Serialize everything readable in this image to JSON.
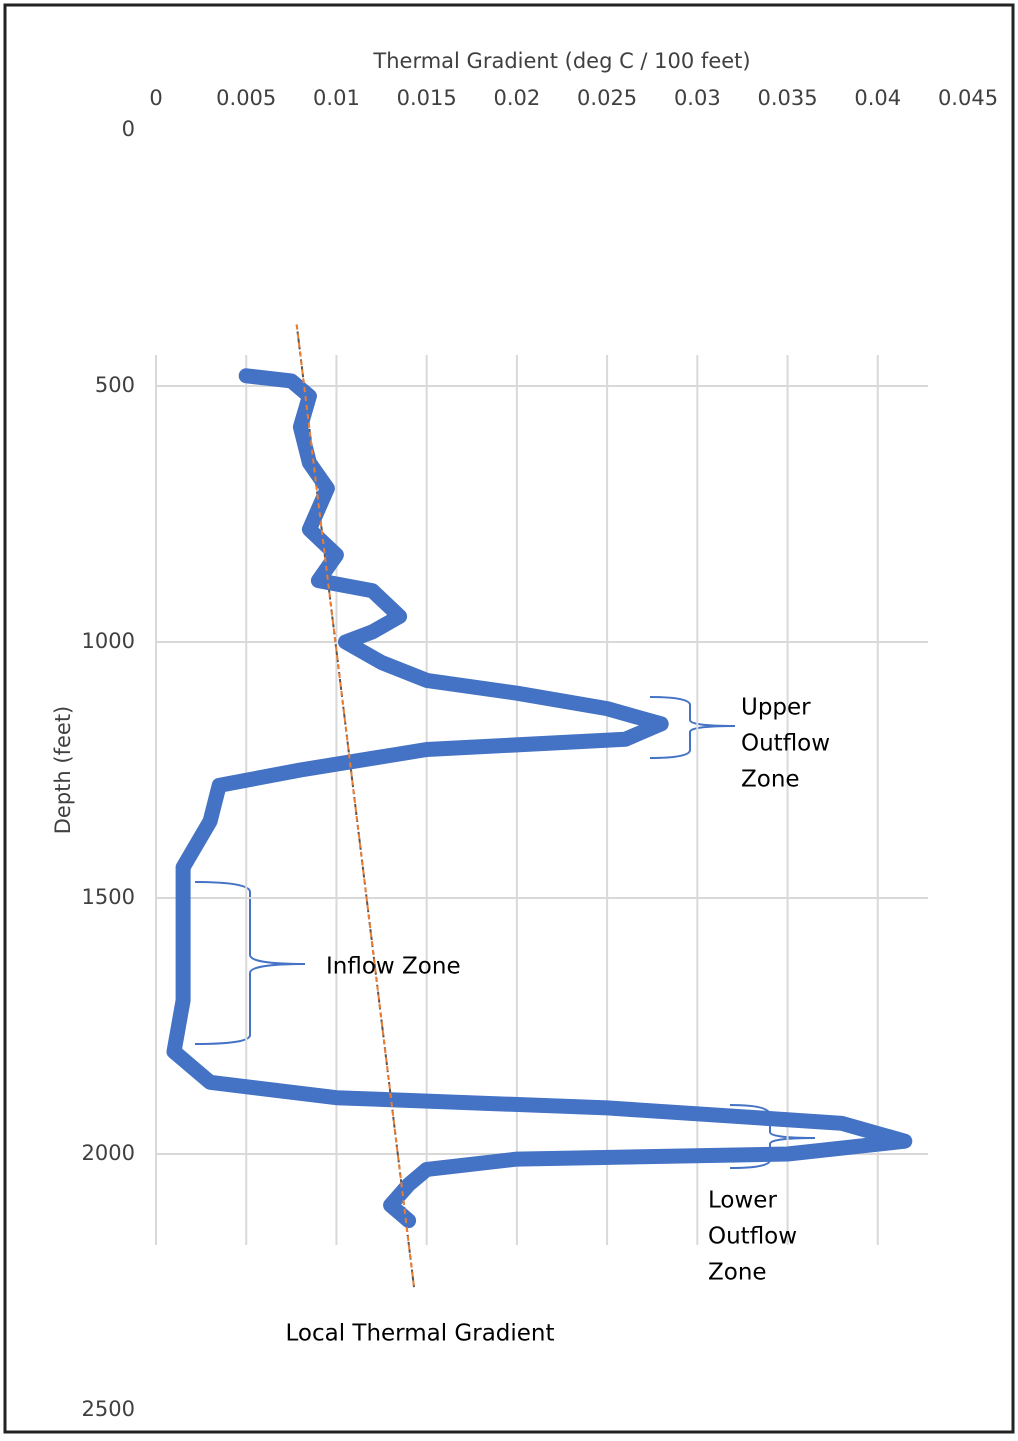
{
  "chart_data": {
    "type": "line",
    "x_label": "Thermal Gradient (deg C / 100 feet)",
    "y_label": "Depth (feet)",
    "xlim": [
      0,
      0.045
    ],
    "xticks": [
      0,
      0.005,
      0.01,
      0.015,
      0.02,
      0.025,
      0.03,
      0.035,
      0.04,
      0.045
    ],
    "ylim": [
      0,
      2500
    ],
    "yticks": [
      0,
      500,
      1000,
      1500,
      2000,
      2500
    ],
    "y_inverted": true,
    "grid": true,
    "series": [
      {
        "color": "#4472c4",
        "x": [
          0.005,
          0.0075,
          0.0085,
          0.008,
          0.0085,
          0.0095,
          0.0085,
          0.01,
          0.009,
          0.012,
          0.0135,
          0.012,
          0.0105,
          0.0125,
          0.015,
          0.02,
          0.025,
          0.028,
          0.026,
          0.015,
          0.008,
          0.0035,
          0.003,
          0.0015,
          0.0015,
          0.0015,
          0.001,
          0.003,
          0.01,
          0.025,
          0.038,
          0.0415,
          0.035,
          0.02,
          0.015,
          0.014,
          0.013,
          0.014
        ],
        "y": [
          480,
          490,
          520,
          580,
          650,
          700,
          780,
          830,
          880,
          900,
          950,
          980,
          1000,
          1040,
          1075,
          1100,
          1130,
          1160,
          1190,
          1210,
          1250,
          1280,
          1350,
          1440,
          1550,
          1700,
          1800,
          1860,
          1890,
          1910,
          1940,
          1975,
          2000,
          2010,
          2030,
          2060,
          2100,
          2130
        ]
      }
    ],
    "trendline": {
      "color": "#ed7d31",
      "x": [
        0.0078,
        0.0143
      ],
      "y": [
        380,
        2260
      ]
    },
    "annotations": [
      {
        "lines": [
          "Upper",
          "Outflow",
          "Zone"
        ]
      },
      {
        "lines": [
          "Inflow Zone"
        ]
      },
      {
        "lines": [
          "Lower",
          "Outflow",
          "Zone"
        ]
      },
      {
        "lines": [
          "Local Thermal Gradient"
        ]
      }
    ]
  }
}
